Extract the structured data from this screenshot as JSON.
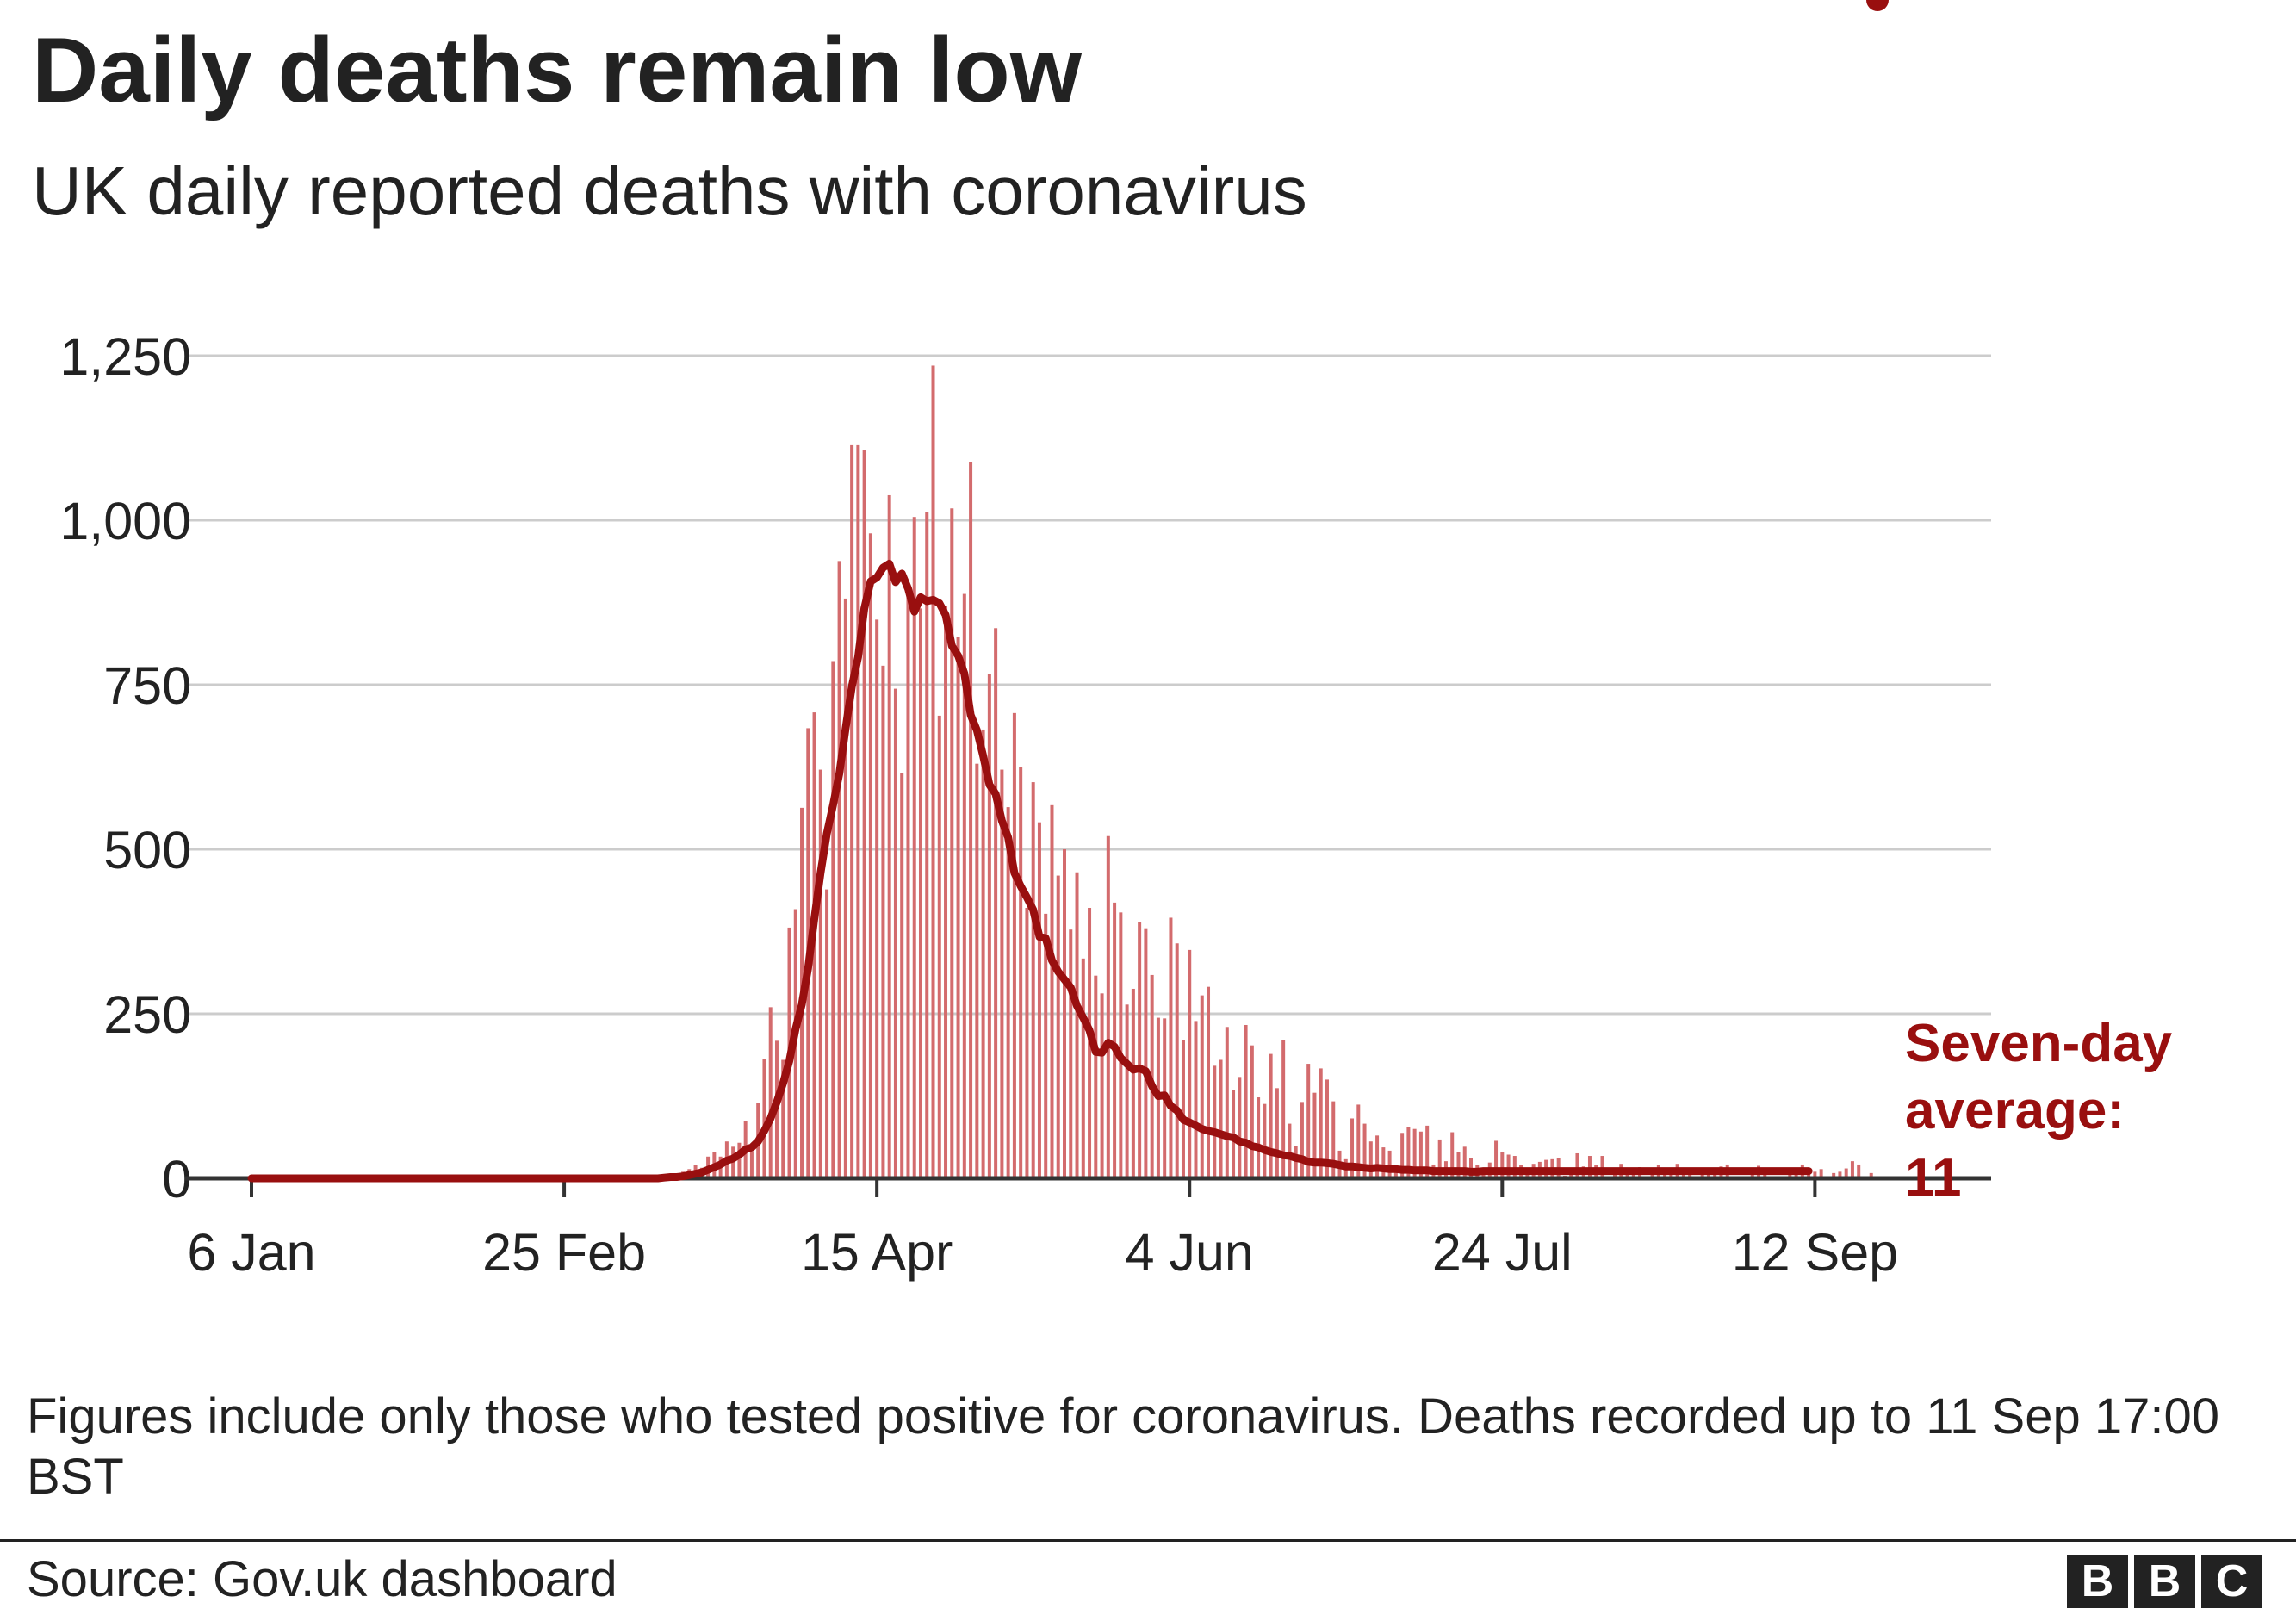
{
  "title": "Daily deaths remain low",
  "subtitle": "UK daily reported deaths with coronavirus",
  "annotation": {
    "line1": "Seven-day",
    "line2": "average:",
    "value": "11"
  },
  "note": "Figures include only those who tested positive for coronavirus. Deaths recorded up to 11 Sep 17:00 BST",
  "source": "Source: Gov.uk dashboard",
  "logo": {
    "letters": [
      "B",
      "B",
      "C"
    ]
  },
  "colors": {
    "bar": "#d36b6d",
    "line": "#990f0f",
    "grid": "#cccccc",
    "axis": "#333333",
    "text": "#222222"
  },
  "chart_data": {
    "type": "bar",
    "x_start": "6 Jan",
    "x_end": "12 Sep",
    "x_ticks": [
      {
        "index": 0,
        "label": "6 Jan"
      },
      {
        "index": 50,
        "label": "25 Feb"
      },
      {
        "index": 100,
        "label": "15 Apr"
      },
      {
        "index": 150,
        "label": "4 Jun"
      },
      {
        "index": 200,
        "label": "24 Jul"
      },
      {
        "index": 250,
        "label": "12 Sep"
      }
    ],
    "y_ticks": [
      0,
      250,
      500,
      750,
      1000,
      1250
    ],
    "ylim": [
      0,
      1250
    ],
    "grid": true,
    "series": [
      {
        "name": "Daily deaths",
        "values": [
          0,
          0,
          0,
          0,
          0,
          0,
          0,
          0,
          0,
          0,
          0,
          0,
          0,
          0,
          0,
          0,
          0,
          0,
          0,
          0,
          0,
          0,
          0,
          0,
          0,
          0,
          0,
          0,
          0,
          0,
          0,
          0,
          0,
          0,
          0,
          0,
          0,
          0,
          0,
          0,
          0,
          0,
          0,
          0,
          0,
          0,
          0,
          0,
          0,
          0,
          0,
          0,
          0,
          0,
          0,
          0,
          0,
          0,
          0,
          0,
          0,
          0,
          0,
          0,
          1,
          2,
          3,
          5,
          2,
          10,
          14,
          20,
          16,
          33,
          40,
          33,
          56,
          48,
          54,
          87,
          41,
          115,
          181,
          260,
          209,
          180,
          381,
          409,
          563,
          684,
          708,
          621,
          439,
          786,
          938,
          881,
          1114,
          1114,
          1106,
          980,
          849,
          779,
          1038,
          744,
          616,
          888,
          1005,
          866,
          1012,
          1235,
          703,
          870,
          1018,
          823,
          888,
          1089,
          630,
          682,
          766,
          836,
          621,
          564,
          707,
          625,
          411,
          602,
          541,
          402,
          567,
          460,
          500,
          378,
          465,
          334,
          411,
          308,
          281,
          520,
          419,
          404,
          264,
          288,
          389,
          380,
          309,
          244,
          243,
          396,
          357,
          210,
          347,
          239,
          278,
          291,
          171,
          180,
          230,
          134,
          154,
          233,
          202,
          123,
          113,
          189,
          137,
          210,
          83,
          49,
          116,
          174,
          130,
          167,
          150,
          117,
          42,
          29,
          91,
          112,
          83,
          56,
          65,
          47,
          42,
          18,
          69,
          78,
          75,
          71,
          80,
          21,
          59,
          26,
          70,
          40,
          48,
          31,
          20,
          12,
          24,
          57,
          40,
          36,
          34,
          20,
          12,
          22,
          25,
          28,
          29,
          31,
          4,
          10,
          38,
          18,
          34,
          20,
          34,
          0,
          9,
          22,
          11,
          12,
          17,
          0,
          8,
          20,
          14,
          13,
          22,
          12,
          8,
          1,
          16,
          12,
          10,
          18,
          21,
          0,
          1,
          3,
          6,
          19,
          15,
          3,
          2,
          2,
          6,
          8,
          21,
          8,
          10,
          14,
          1,
          8,
          10,
          15,
          26,
          21,
          2,
          8,
          2
        ]
      },
      {
        "name": "Seven-day average",
        "values": [
          0,
          0,
          0,
          0,
          0,
          0,
          0,
          0,
          0,
          0,
          0,
          0,
          0,
          0,
          0,
          0,
          0,
          0,
          0,
          0,
          0,
          0,
          0,
          0,
          0,
          0,
          0,
          0,
          0,
          0,
          0,
          0,
          0,
          0,
          0,
          0,
          0,
          0,
          0,
          0,
          0,
          0,
          0,
          0,
          0,
          0,
          0,
          0,
          0,
          0,
          0,
          0,
          0,
          0,
          0,
          0,
          0,
          0,
          0,
          0,
          0,
          0,
          0,
          0,
          0,
          0,
          1,
          2,
          2,
          3,
          5,
          7,
          9,
          13,
          17,
          21,
          27,
          30,
          36,
          44,
          47,
          56,
          72,
          91,
          116,
          144,
          178,
          227,
          264,
          319,
          394,
          464,
          524,
          567,
          615,
          683,
          747,
          792,
          866,
          907,
          913,
          928,
          934,
          906,
          919,
          896,
          861,
          883,
          877,
          879,
          874,
          856,
          809,
          794,
          767,
          704,
          681,
          642,
          598,
          584,
          543,
          518,
          464,
          444,
          427,
          408,
          367,
          365,
          331,
          314,
          302,
          290,
          262,
          244,
          225,
          192,
          191,
          206,
          200,
          183,
          174,
          165,
          167,
          163,
          140,
          125,
          126,
          110,
          103,
          89,
          85,
          80,
          75,
          72,
          70,
          67,
          64,
          62,
          56,
          54,
          49,
          47,
          43,
          40,
          38,
          35,
          34,
          31,
          29,
          25,
          24,
          24,
          23,
          22,
          20,
          18,
          18,
          17,
          16,
          15,
          16,
          15,
          14,
          14,
          13,
          13,
          12,
          12,
          12,
          11,
          11,
          11,
          11,
          11,
          11,
          10,
          10,
          11,
          11,
          11,
          11,
          11,
          11,
          11,
          11,
          11,
          11,
          11,
          11,
          11,
          11,
          11,
          11,
          11,
          11,
          11,
          11,
          11,
          11,
          11,
          11,
          11,
          11,
          11,
          11,
          11,
          11,
          11,
          11,
          11,
          11,
          11,
          11,
          11,
          11,
          11,
          11,
          11,
          11,
          11,
          11,
          11,
          11,
          11,
          11,
          11,
          11,
          11,
          11,
          11
        ]
      }
    ]
  }
}
